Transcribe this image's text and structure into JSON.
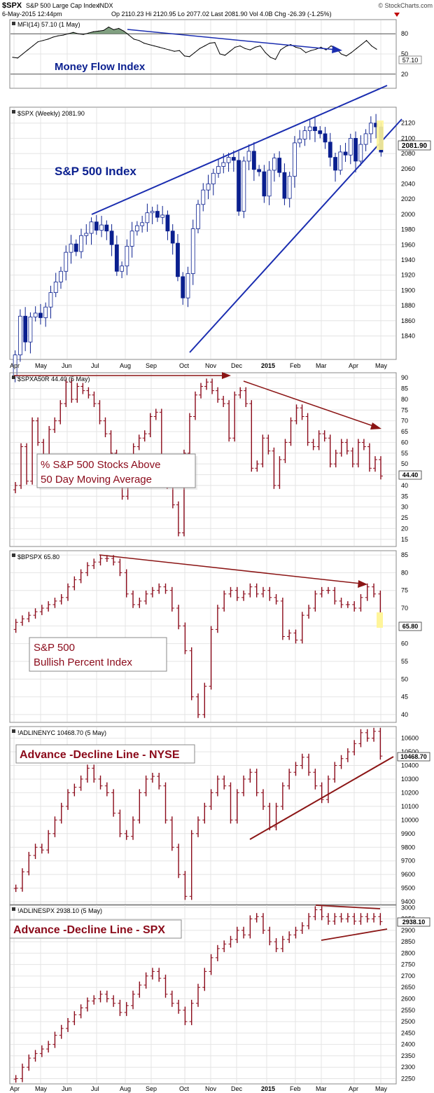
{
  "header": {
    "symbol": "$SPX",
    "name": "S&P 500 Large Cap Index",
    "exchange": "INDX",
    "date": "6-May-2015 12:44pm",
    "quote": "Op 2110.23  Hi 2120.95  Lo 2077.02  Last 2081.90  Vol 4.0B  Chg -26.39 (-1.25%)",
    "credit": "© StockCharts.com"
  },
  "x_axis": {
    "months": [
      "Apr",
      "May",
      "Jun",
      "Jul",
      "Aug",
      "Sep",
      "Oct",
      "Nov",
      "Dec",
      "2015",
      "Feb",
      "Mar",
      "Apr",
      "May"
    ],
    "bold_label": "2015"
  },
  "colors": {
    "spx_bar": "#0a1f8f",
    "red_bar": "#8b0a1a",
    "annotation_blue": "#1a2db0",
    "annotation_red": "#8b1515",
    "mfi_fill": "#6b8f6b",
    "highlight": "#fff59a",
    "grid": "#e4e4e4"
  },
  "chart_data": [
    {
      "id": "mfi",
      "type": "line",
      "legend": "MFI(14) 57.10 (1 May)",
      "last_label": "57.10",
      "annotation": "Money Flow Index",
      "ylim": [
        0,
        100
      ],
      "ticks": [
        20,
        50,
        80
      ],
      "reference_lines": [
        20,
        80
      ],
      "values": [
        45,
        44,
        50,
        56,
        62,
        68,
        70,
        72,
        75,
        77,
        78,
        80,
        82,
        80,
        79,
        81,
        83,
        84,
        85,
        90,
        86,
        88,
        84,
        78,
        72,
        70,
        66,
        64,
        62,
        60,
        58,
        56,
        54,
        55,
        47,
        46,
        52,
        58,
        62,
        66,
        67,
        50,
        48,
        54,
        60,
        62,
        58,
        56,
        60,
        62,
        52,
        45,
        42,
        56,
        61,
        64,
        60,
        58,
        52,
        55,
        57,
        60,
        56,
        62,
        58,
        50,
        47,
        52,
        58,
        64,
        70,
        62,
        57
      ]
    },
    {
      "id": "spx",
      "type": "ohlc",
      "legend": "$SPX (Weekly) 2081.90",
      "last_label": "2081.90",
      "annotation": "S&P 500 Index",
      "ylim": [
        1810,
        2140
      ],
      "ticks": [
        1840,
        1860,
        1880,
        1900,
        1920,
        1940,
        1960,
        1980,
        2000,
        2020,
        2040,
        2060,
        2080,
        2100,
        2120
      ],
      "closes": [
        1815,
        1866,
        1832,
        1865,
        1870,
        1864,
        1878,
        1897,
        1911,
        1925,
        1950,
        1961,
        1951,
        1972,
        1975,
        1990,
        1979,
        1986,
        1978,
        1960,
        1925,
        1932,
        1958,
        1978,
        1985,
        1989,
        2002,
        2004,
        1996,
        1999,
        1978,
        1962,
        1918,
        1890,
        1922,
        1981,
        2013,
        2032,
        2040,
        2054,
        2063,
        2068,
        2075,
        2071,
        2004,
        2070,
        2083,
        2059,
        2056,
        2024,
        2058,
        2074,
        2055,
        2021,
        2050,
        2094,
        2099,
        2110,
        2115,
        2110,
        2106,
        2095,
        2075,
        2058,
        2082,
        2078,
        2100,
        2070,
        2092,
        2106,
        2120,
        2115,
        2081.9
      ]
    },
    {
      "id": "spxa50r",
      "type": "line",
      "legend": "$SPXA50R 44.40 (5 May)",
      "last_label": "44.40",
      "annotation": [
        "% S&P 500 Stocks Above",
        "50 Day Moving Average"
      ],
      "ylim": [
        12,
        92
      ],
      "ticks": [
        15,
        20,
        25,
        30,
        35,
        40,
        45,
        50,
        55,
        60,
        65,
        70,
        75,
        80,
        85,
        90
      ],
      "values": [
        40,
        58,
        42,
        70,
        60,
        52,
        66,
        70,
        78,
        88,
        80,
        86,
        84,
        82,
        78,
        70,
        64,
        55,
        46,
        35,
        45,
        58,
        62,
        64,
        72,
        74,
        52,
        40,
        31,
        18,
        55,
        72,
        82,
        86,
        88,
        84,
        80,
        78,
        62,
        82,
        84,
        78,
        48,
        50,
        62,
        56,
        40,
        52,
        60,
        70,
        76,
        72,
        60,
        58,
        64,
        62,
        50,
        55,
        60,
        56,
        50,
        60,
        58,
        48,
        52,
        44.4
      ]
    },
    {
      "id": "bpspx",
      "type": "line",
      "legend": "$BPSPX 65.80",
      "last_label": "65.80",
      "annotation": [
        "S&P 500",
        "Bullish Percent Index"
      ],
      "ylim": [
        38,
        86
      ],
      "ticks": [
        40,
        45,
        50,
        55,
        60,
        65,
        70,
        75,
        80,
        85
      ],
      "values": [
        66,
        67,
        68,
        69,
        70,
        71,
        72,
        73,
        76,
        78,
        80,
        82,
        83,
        84,
        84,
        83,
        80,
        74,
        71,
        72,
        74,
        75,
        76,
        75,
        70,
        65,
        58,
        45,
        40,
        48,
        64,
        70,
        74,
        75,
        73,
        74,
        76,
        74,
        75,
        73,
        72,
        62,
        63,
        61,
        68,
        70,
        74,
        75,
        75,
        72,
        71,
        71,
        70,
        73,
        76,
        74,
        65.8
      ]
    },
    {
      "id": "adline_nyse",
      "type": "line",
      "legend": "!ADLINENYC 10468.70 (5 May)",
      "last_label": "10468.70",
      "annotation": "Advance -Decline Line - NYSE",
      "ylim": [
        9380,
        10680
      ],
      "ticks": [
        9400,
        9500,
        9600,
        9700,
        9800,
        9900,
        10000,
        10100,
        10200,
        10300,
        10400,
        10500,
        10600
      ],
      "values": [
        9500,
        9620,
        9740,
        9800,
        9780,
        9900,
        10000,
        10100,
        10200,
        10240,
        10300,
        10380,
        10300,
        10250,
        10200,
        10050,
        9900,
        9880,
        10000,
        10200,
        10300,
        10320,
        10250,
        10000,
        9800,
        9600,
        9440,
        9900,
        10000,
        10100,
        10200,
        10300,
        10250,
        10000,
        10200,
        10300,
        10350,
        10200,
        10100,
        9950,
        10100,
        10250,
        10350,
        10400,
        10460,
        10350,
        10250,
        10150,
        10300,
        10400,
        10450,
        10500,
        10560,
        10640,
        10600,
        10650,
        10468.7
      ]
    },
    {
      "id": "adline_spx",
      "type": "line",
      "legend": "!ADLINESPX 2938.10 (5 May)",
      "last_label": "2938.10",
      "annotation": "Advance -Decline Line - SPX",
      "ylim": [
        2230,
        3010
      ],
      "ticks": [
        2250,
        2300,
        2350,
        2400,
        2450,
        2500,
        2550,
        2600,
        2650,
        2700,
        2750,
        2800,
        2850,
        2900,
        2950,
        3000
      ],
      "values": [
        2250,
        2300,
        2340,
        2360,
        2380,
        2400,
        2440,
        2470,
        2500,
        2530,
        2560,
        2590,
        2600,
        2620,
        2600,
        2580,
        2540,
        2570,
        2620,
        2660,
        2700,
        2720,
        2690,
        2620,
        2580,
        2550,
        2500,
        2580,
        2650,
        2720,
        2780,
        2820,
        2840,
        2860,
        2900,
        2880,
        2950,
        2960,
        2900,
        2850,
        2820,
        2860,
        2880,
        2900,
        2920,
        2960,
        2990,
        2960,
        2940,
        2960,
        2950,
        2960,
        2940,
        2960,
        2950,
        2960,
        2938.1
      ]
    }
  ]
}
